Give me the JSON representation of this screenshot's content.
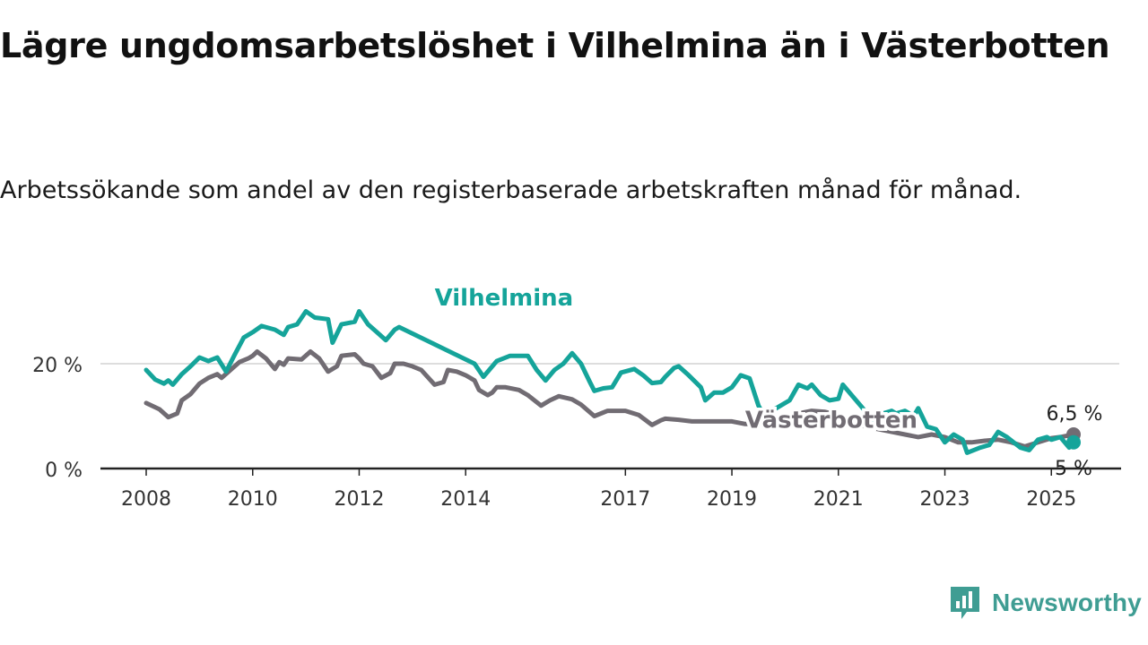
{
  "header": {
    "title": "Lägre ungdomsarbetslöshet i Vilhelmina än i Västerbotten",
    "subtitle": "Arbetssökande som andel av den registerbaserade arbetskraften månad för månad."
  },
  "brand": {
    "name": "Newsworthy",
    "icon": "newsworthy-logo-icon",
    "color": "#3f9d93"
  },
  "chart_data": {
    "type": "line",
    "title": "Lägre ungdomsarbetslöshet i Vilhelmina än i Västerbotten",
    "subtitle": "Arbetssökande som andel av den registerbaserade arbetskraften månad för månad.",
    "xlabel": "",
    "ylabel": "",
    "ylim": [
      0,
      36
    ],
    "xlim": [
      "2008-01",
      "2025-06"
    ],
    "grid": true,
    "y_ticks": [
      {
        "value": 0,
        "label": "0 %"
      },
      {
        "value": 20,
        "label": "20 %"
      }
    ],
    "x_ticks": [
      {
        "value": "2008-01",
        "label": "2008"
      },
      {
        "value": "2010-01",
        "label": "2010"
      },
      {
        "value": "2012-01",
        "label": "2012"
      },
      {
        "value": "2014-01",
        "label": "2014"
      },
      {
        "value": "2017-01",
        "label": "2017"
      },
      {
        "value": "2019-01",
        "label": "2019"
      },
      {
        "value": "2021-01",
        "label": "2021"
      },
      {
        "value": "2023-01",
        "label": "2023"
      },
      {
        "value": "2025-01",
        "label": "2025"
      }
    ],
    "series": [
      {
        "name": "Västerbotten",
        "color": "#716c73",
        "end_label": "6,5 %",
        "points": [
          [
            "2008-01",
            12.5
          ],
          [
            "2008-04",
            11.3
          ],
          [
            "2008-06",
            9.8
          ],
          [
            "2008-08",
            10.5
          ],
          [
            "2008-09",
            13.0
          ],
          [
            "2008-11",
            14.2
          ],
          [
            "2009-01",
            16.2
          ],
          [
            "2009-03",
            17.3
          ],
          [
            "2009-05",
            18.0
          ],
          [
            "2009-06",
            17.3
          ],
          [
            "2009-08",
            18.8
          ],
          [
            "2009-10",
            20.3
          ],
          [
            "2009-12",
            21.0
          ],
          [
            "2010-01",
            21.5
          ],
          [
            "2010-02",
            22.3
          ],
          [
            "2010-04",
            21.0
          ],
          [
            "2010-06",
            19.0
          ],
          [
            "2010-07",
            20.3
          ],
          [
            "2010-08",
            19.8
          ],
          [
            "2010-09",
            21.0
          ],
          [
            "2010-12",
            20.8
          ],
          [
            "2011-02",
            22.3
          ],
          [
            "2011-04",
            21.0
          ],
          [
            "2011-06",
            18.5
          ],
          [
            "2011-08",
            19.5
          ],
          [
            "2011-09",
            21.5
          ],
          [
            "2011-12",
            21.8
          ],
          [
            "2012-01",
            21.0
          ],
          [
            "2012-02",
            20.0
          ],
          [
            "2012-04",
            19.5
          ],
          [
            "2012-06",
            17.3
          ],
          [
            "2012-08",
            18.2
          ],
          [
            "2012-09",
            20.0
          ],
          [
            "2012-11",
            20.0
          ],
          [
            "2013-01",
            19.5
          ],
          [
            "2013-03",
            18.8
          ],
          [
            "2013-06",
            16.0
          ],
          [
            "2013-08",
            16.5
          ],
          [
            "2013-09",
            18.8
          ],
          [
            "2013-11",
            18.5
          ],
          [
            "2014-01",
            17.8
          ],
          [
            "2014-03",
            16.8
          ],
          [
            "2014-04",
            15.0
          ],
          [
            "2014-06",
            14.0
          ],
          [
            "2014-07",
            14.5
          ],
          [
            "2014-08",
            15.5
          ],
          [
            "2014-10",
            15.5
          ],
          [
            "2015-01",
            15.0
          ],
          [
            "2015-03",
            14.0
          ],
          [
            "2015-06",
            12.0
          ],
          [
            "2015-08",
            13.0
          ],
          [
            "2015-10",
            13.8
          ],
          [
            "2016-01",
            13.2
          ],
          [
            "2016-03",
            12.2
          ],
          [
            "2016-06",
            10.0
          ],
          [
            "2016-09",
            11.0
          ],
          [
            "2017-01",
            11.0
          ],
          [
            "2017-04",
            10.2
          ],
          [
            "2017-07",
            8.3
          ],
          [
            "2017-09",
            9.2
          ],
          [
            "2017-10",
            9.5
          ],
          [
            "2018-01",
            9.3
          ],
          [
            "2018-04",
            9.0
          ],
          [
            "2018-07",
            9.0
          ],
          [
            "2018-10",
            9.0
          ],
          [
            "2019-01",
            9.0
          ],
          [
            "2019-04",
            8.5
          ],
          [
            "2019-07",
            8.5
          ],
          [
            "2019-10",
            9.0
          ],
          [
            "2020-01",
            9.2
          ],
          [
            "2020-04",
            10.5
          ],
          [
            "2020-07",
            11.0
          ],
          [
            "2020-10",
            10.8
          ],
          [
            "2021-01",
            10.2
          ],
          [
            "2021-04",
            9.0
          ],
          [
            "2021-07",
            8.0
          ],
          [
            "2021-10",
            7.5
          ],
          [
            "2022-01",
            7.0
          ],
          [
            "2022-04",
            6.5
          ],
          [
            "2022-07",
            6.0
          ],
          [
            "2022-10",
            6.5
          ],
          [
            "2023-01",
            6.0
          ],
          [
            "2023-04",
            5.0
          ],
          [
            "2023-07",
            5.0
          ],
          [
            "2023-10",
            5.3
          ],
          [
            "2024-01",
            5.5
          ],
          [
            "2024-04",
            5.0
          ],
          [
            "2024-07",
            4.2
          ],
          [
            "2024-10",
            5.0
          ],
          [
            "2025-01",
            5.8
          ],
          [
            "2025-03",
            6.0
          ],
          [
            "2025-06",
            6.5
          ]
        ]
      },
      {
        "name": "Vilhelmina",
        "color": "#15a49a",
        "end_label": "5 %",
        "points": [
          [
            "2008-01",
            18.8
          ],
          [
            "2008-03",
            17.0
          ],
          [
            "2008-05",
            16.2
          ],
          [
            "2008-06",
            16.8
          ],
          [
            "2008-07",
            16.0
          ],
          [
            "2008-09",
            18.0
          ],
          [
            "2008-11",
            19.5
          ],
          [
            "2009-01",
            21.2
          ],
          [
            "2009-03",
            20.5
          ],
          [
            "2009-05",
            21.2
          ],
          [
            "2009-07",
            18.5
          ],
          [
            "2009-09",
            21.8
          ],
          [
            "2009-11",
            25.0
          ],
          [
            "2010-01",
            26.0
          ],
          [
            "2010-03",
            27.2
          ],
          [
            "2010-06",
            26.5
          ],
          [
            "2010-08",
            25.5
          ],
          [
            "2010-09",
            27.0
          ],
          [
            "2010-11",
            27.5
          ],
          [
            "2011-01",
            30.0
          ],
          [
            "2011-03",
            28.8
          ],
          [
            "2011-06",
            28.5
          ],
          [
            "2011-07",
            24.0
          ],
          [
            "2011-09",
            27.5
          ],
          [
            "2011-12",
            28.0
          ],
          [
            "2012-01",
            30.0
          ],
          [
            "2012-03",
            27.5
          ],
          [
            "2012-05",
            26.0
          ],
          [
            "2012-07",
            24.5
          ],
          [
            "2012-09",
            26.5
          ],
          [
            "2012-10",
            27.0
          ],
          [
            "2014-03",
            20.0
          ],
          [
            "2014-05",
            17.5
          ],
          [
            "2014-08",
            20.5
          ],
          [
            "2014-11",
            21.5
          ],
          [
            "2015-03",
            21.5
          ],
          [
            "2015-05",
            18.8
          ],
          [
            "2015-07",
            16.8
          ],
          [
            "2015-09",
            18.8
          ],
          [
            "2015-11",
            20.0
          ],
          [
            "2016-01",
            22.0
          ],
          [
            "2016-03",
            20.0
          ],
          [
            "2016-05",
            16.5
          ],
          [
            "2016-06",
            14.8
          ],
          [
            "2016-08",
            15.3
          ],
          [
            "2016-10",
            15.5
          ],
          [
            "2016-12",
            18.3
          ],
          [
            "2017-03",
            19.0
          ],
          [
            "2017-05",
            17.8
          ],
          [
            "2017-07",
            16.3
          ],
          [
            "2017-09",
            16.5
          ],
          [
            "2017-10",
            17.5
          ],
          [
            "2017-12",
            19.2
          ],
          [
            "2018-01",
            19.5
          ],
          [
            "2018-03",
            18.0
          ],
          [
            "2018-06",
            15.5
          ],
          [
            "2018-07",
            13.0
          ],
          [
            "2018-09",
            14.5
          ],
          [
            "2018-11",
            14.5
          ],
          [
            "2019-01",
            15.5
          ],
          [
            "2019-03",
            17.8
          ],
          [
            "2019-05",
            17.2
          ],
          [
            "2019-07",
            12.0
          ],
          [
            "2019-08",
            10.5
          ],
          [
            "2019-11",
            11.5
          ],
          [
            "2020-02",
            13.0
          ],
          [
            "2020-04",
            16.0
          ],
          [
            "2020-06",
            15.3
          ],
          [
            "2020-07",
            16.0
          ],
          [
            "2020-09",
            14.0
          ],
          [
            "2020-11",
            13.0
          ],
          [
            "2021-01",
            13.3
          ],
          [
            "2021-02",
            16.0
          ],
          [
            "2021-04",
            14.0
          ],
          [
            "2021-06",
            12.0
          ],
          [
            "2021-08",
            10.0
          ],
          [
            "2021-09",
            8.8
          ],
          [
            "2021-11",
            10.5
          ],
          [
            "2022-01",
            11.0
          ],
          [
            "2022-02",
            10.5
          ],
          [
            "2022-04",
            11.0
          ],
          [
            "2022-06",
            10.0
          ],
          [
            "2022-07",
            11.5
          ],
          [
            "2022-09",
            8.0
          ],
          [
            "2022-11",
            7.5
          ],
          [
            "2023-01",
            5.0
          ],
          [
            "2023-03",
            6.5
          ],
          [
            "2023-05",
            5.5
          ],
          [
            "2023-06",
            3.0
          ],
          [
            "2023-09",
            4.0
          ],
          [
            "2023-11",
            4.5
          ],
          [
            "2024-01",
            7.0
          ],
          [
            "2024-03",
            6.0
          ],
          [
            "2024-06",
            4.0
          ],
          [
            "2024-08",
            3.5
          ],
          [
            "2024-10",
            5.5
          ],
          [
            "2024-12",
            6.0
          ],
          [
            "2025-01",
            5.5
          ],
          [
            "2025-03",
            6.0
          ],
          [
            "2025-05",
            4.0
          ],
          [
            "2025-06",
            5.0
          ]
        ]
      }
    ],
    "annotations": [
      {
        "text": "Vilhelmina",
        "series": "Vilhelmina",
        "at": "2013-06"
      },
      {
        "text": "Västerbotten",
        "series": "Västerbotten",
        "at": "2019-04"
      }
    ]
  }
}
